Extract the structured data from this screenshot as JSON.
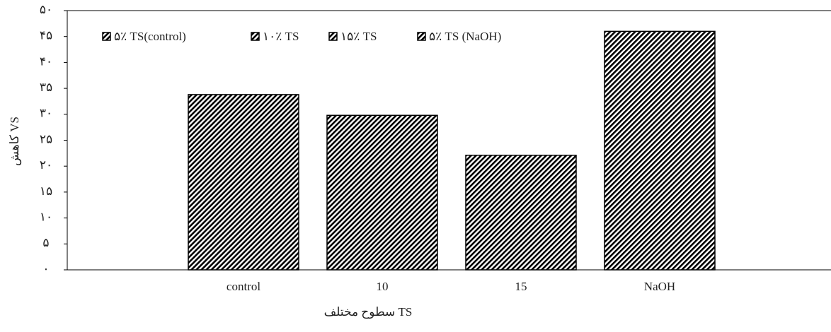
{
  "chart_data": {
    "type": "bar",
    "categories": [
      "control",
      "10",
      "15",
      "NaOH"
    ],
    "values": [
      33.8,
      29.8,
      22.1,
      46.0
    ],
    "color": "#000000",
    "pattern": "hatch",
    "legend": [
      "۵٪ TS(control)",
      "۱۰٪ TS",
      "۱۵٪ TS",
      "۵٪ TS (NaOH)"
    ],
    "legend_position": "top-left",
    "x_label": "سطوح مختلف TS",
    "y_label": "کاهش VS",
    "ylim": [
      0,
      50
    ],
    "yticks": [
      {
        "value": 0,
        "label": "۰"
      },
      {
        "value": 5,
        "label": "۵"
      },
      {
        "value": 10,
        "label": "۱۰"
      },
      {
        "value": 15,
        "label": "۱۵"
      },
      {
        "value": 20,
        "label": "۲۰"
      },
      {
        "value": 25,
        "label": "۲۵"
      },
      {
        "value": 30,
        "label": "۳۰"
      },
      {
        "value": 35,
        "label": "۳۵"
      },
      {
        "value": 40,
        "label": "۴۰"
      },
      {
        "value": 45,
        "label": "۴۵"
      },
      {
        "value": 50,
        "label": "۵۰"
      }
    ]
  }
}
